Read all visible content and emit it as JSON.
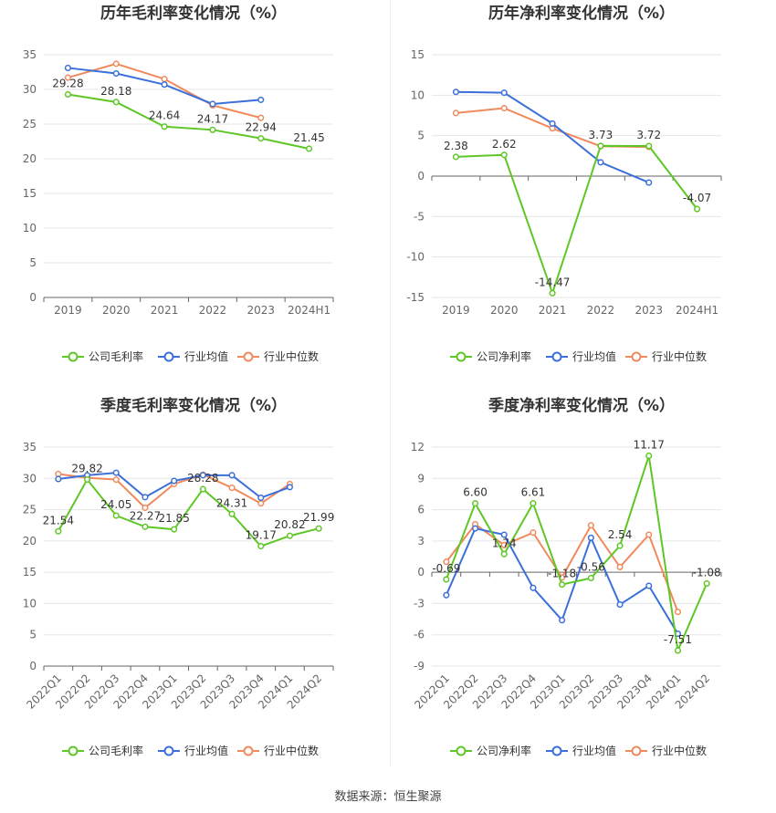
{
  "source_text": "数据来源：恒生聚源",
  "colors": {
    "company": "#5ec726",
    "avg": "#3b6fd9",
    "median": "#f08a5d"
  },
  "chart_data": [
    {
      "type": "line",
      "title": "历年毛利率变化情况（%）",
      "categories": [
        "2019",
        "2020",
        "2021",
        "2022",
        "2023",
        "2024H1"
      ],
      "ylim": [
        0,
        35
      ],
      "yticks": [
        0,
        5,
        10,
        15,
        20,
        25,
        30,
        35
      ],
      "rotate_x": false,
      "series": [
        {
          "name": "公司毛利率",
          "key": "company",
          "values": [
            29.28,
            28.18,
            24.64,
            24.17,
            22.94,
            21.45
          ],
          "labels": [
            "29.28",
            "28.18",
            "24.64",
            "24.17",
            "22.94",
            "21.45"
          ]
        },
        {
          "name": "行业均值",
          "key": "avg",
          "values": [
            33.1,
            32.3,
            30.7,
            27.9,
            28.5,
            null
          ]
        },
        {
          "name": "行业中位数",
          "key": "median",
          "values": [
            31.7,
            33.7,
            31.5,
            27.7,
            25.9,
            null
          ]
        }
      ]
    },
    {
      "type": "line",
      "title": "历年净利率变化情况（%）",
      "categories": [
        "2019",
        "2020",
        "2021",
        "2022",
        "2023",
        "2024H1"
      ],
      "ylim": [
        -15,
        15
      ],
      "yticks": [
        -15,
        -10,
        -5,
        0,
        5,
        10,
        15
      ],
      "rotate_x": false,
      "series": [
        {
          "name": "公司净利率",
          "key": "company",
          "values": [
            2.38,
            2.62,
            -14.47,
            3.73,
            3.72,
            -4.07
          ],
          "labels": [
            "2.38",
            "2.62",
            "-14.47",
            "3.73",
            "3.72",
            "-4.07"
          ]
        },
        {
          "name": "行业均值",
          "key": "avg",
          "values": [
            10.4,
            10.3,
            6.5,
            1.7,
            -0.8,
            null
          ]
        },
        {
          "name": "行业中位数",
          "key": "median",
          "values": [
            7.8,
            8.4,
            5.9,
            3.7,
            3.6,
            null
          ]
        }
      ]
    },
    {
      "type": "line",
      "title": "季度毛利率变化情况（%）",
      "categories": [
        "2022Q1",
        "2022Q2",
        "2022Q3",
        "2022Q4",
        "2023Q1",
        "2023Q2",
        "2023Q3",
        "2023Q4",
        "2024Q1",
        "2024Q2"
      ],
      "ylim": [
        0,
        35
      ],
      "yticks": [
        0,
        5,
        10,
        15,
        20,
        25,
        30,
        35
      ],
      "rotate_x": true,
      "series": [
        {
          "name": "公司毛利率",
          "key": "company",
          "values": [
            21.54,
            29.82,
            24.05,
            22.27,
            21.85,
            28.28,
            24.31,
            19.17,
            20.82,
            21.99
          ],
          "labels": [
            "21.54",
            "29.82",
            "24.05",
            "22.27",
            "21.85",
            "28.28",
            "24.31",
            "19.17",
            "20.82",
            "21.99"
          ]
        },
        {
          "name": "行业均值",
          "key": "avg",
          "values": [
            29.9,
            30.5,
            30.9,
            27.0,
            29.6,
            30.5,
            30.5,
            26.9,
            28.6,
            null
          ]
        },
        {
          "name": "行业中位数",
          "key": "median",
          "values": [
            30.7,
            30.1,
            29.8,
            25.3,
            29.1,
            30.6,
            28.5,
            26.0,
            29.1,
            null
          ]
        }
      ]
    },
    {
      "type": "line",
      "title": "季度净利率变化情况（%）",
      "categories": [
        "2022Q1",
        "2022Q2",
        "2022Q3",
        "2022Q4",
        "2023Q1",
        "2023Q2",
        "2023Q3",
        "2023Q4",
        "2024Q1",
        "2024Q2"
      ],
      "ylim": [
        -9,
        12
      ],
      "yticks": [
        -9,
        -6,
        -3,
        0,
        3,
        6,
        9,
        12
      ],
      "rotate_x": true,
      "series": [
        {
          "name": "公司净利率",
          "key": "company",
          "values": [
            -0.69,
            6.6,
            1.74,
            6.61,
            -1.18,
            -0.56,
            2.54,
            11.17,
            -7.51,
            -1.08
          ],
          "labels": [
            "-0.69",
            "6.60",
            "1.74",
            "6.61",
            "-1.18",
            "-0.56",
            "2.54",
            "11.17",
            "-7.51",
            "-1.08"
          ]
        },
        {
          "name": "行业均值",
          "key": "avg",
          "values": [
            -2.2,
            4.2,
            3.6,
            -1.5,
            -4.6,
            3.3,
            -3.1,
            -1.3,
            -5.9,
            null
          ]
        },
        {
          "name": "行业中位数",
          "key": "median",
          "values": [
            1.0,
            4.6,
            2.6,
            3.8,
            -0.5,
            4.5,
            0.5,
            3.6,
            -3.8,
            null
          ]
        }
      ]
    }
  ]
}
